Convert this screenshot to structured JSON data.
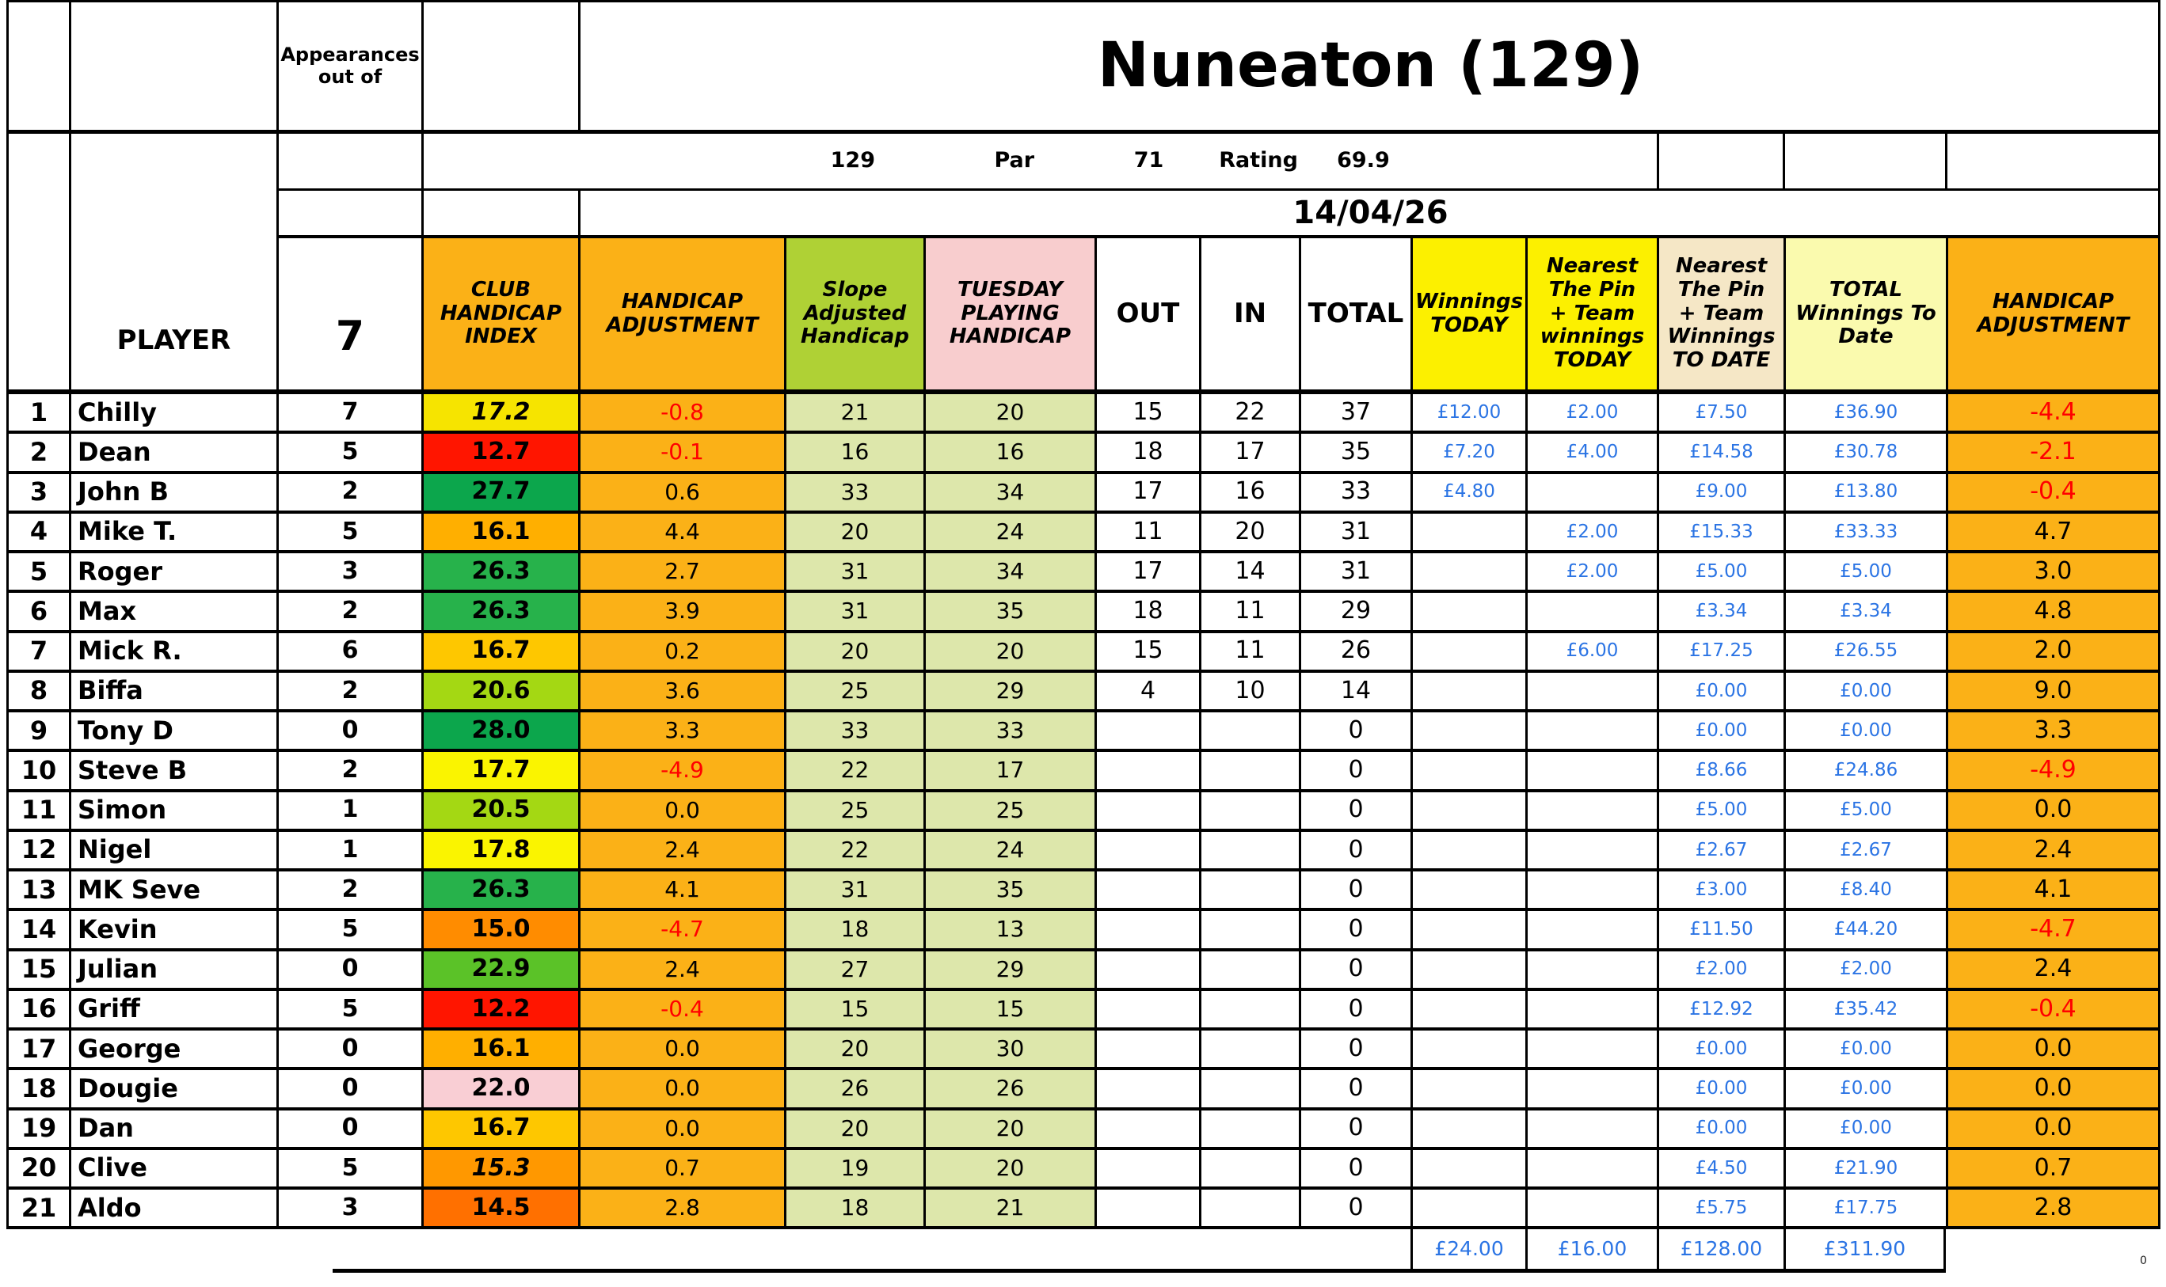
{
  "header": {
    "appearances_label": "Appearances out of",
    "title": "Nuneaton (129)",
    "slope_value": "129",
    "par_label": "Par",
    "par_value": "71",
    "rating_label": "Rating",
    "rating_value": "69.9",
    "date": "14/04/26",
    "player_label": "PLAYER",
    "appearances_total": "7",
    "columns": {
      "club_handicap_index": "CLUB HANDICAP INDEX",
      "handicap_adjustment": "HANDICAP ADJUSTMENT",
      "slope_adjusted_handicap": "Slope Adjusted Handicap",
      "tuesday_playing_handicap": "TUESDAY PLAYING HANDICAP",
      "out": "OUT",
      "in": "IN",
      "total": "TOTAL",
      "winnings_today": "Winnings TODAY",
      "nearest_pin_today": "Nearest The Pin + Team winnings TODAY",
      "nearest_pin_to_date": "Nearest The Pin + Team Winnings TO DATE",
      "total_winnings_to_date": "TOTAL Winnings To Date",
      "handicap_adjustment_right": "HANDICAP ADJUSTMENT"
    }
  },
  "colors": {
    "orange": "#FBB117",
    "slope_green": "#AFD135",
    "pink": "#F8CDCE",
    "yellow": "#FCF000",
    "cream": "#F5E7C6",
    "pale_yellow": "#FAFAAE",
    "pale_green": "#DDE7AB",
    "money_blue": "#2B74E4",
    "negative_red": "#FF0000"
  },
  "rows": [
    {
      "num": "1",
      "name": "Chilly",
      "apps": "7",
      "index": "17.2",
      "index_bg": "#F6E400",
      "index_italic": true,
      "adj": "-0.8",
      "slope": "21",
      "tue": "20",
      "out": "15",
      "in": "22",
      "total": "37",
      "win_today": "£12.00",
      "np_today": "£2.00",
      "np_to_date": "£7.50",
      "total_winnings": "£36.90",
      "handicap_adj": "-4.4"
    },
    {
      "num": "2",
      "name": "Dean",
      "apps": "5",
      "index": "12.7",
      "index_bg": "#FF1500",
      "index_italic": false,
      "adj": "-0.1",
      "slope": "16",
      "tue": "16",
      "out": "18",
      "in": "17",
      "total": "35",
      "win_today": "£7.20",
      "np_today": "£4.00",
      "np_to_date": "£14.58",
      "total_winnings": "£30.78",
      "handicap_adj": "-2.1"
    },
    {
      "num": "3",
      "name": "John B",
      "apps": "2",
      "index": "27.7",
      "index_bg": "#0CA64C",
      "index_italic": false,
      "adj": "0.6",
      "slope": "33",
      "tue": "34",
      "out": "17",
      "in": "16",
      "total": "33",
      "win_today": "£4.80",
      "np_today": "",
      "np_to_date": "£9.00",
      "total_winnings": "£13.80",
      "handicap_adj": "-0.4"
    },
    {
      "num": "4",
      "name": "Mike T.",
      "apps": "5",
      "index": "16.1",
      "index_bg": "#FFAF00",
      "index_italic": false,
      "adj": "4.4",
      "slope": "20",
      "tue": "24",
      "out": "11",
      "in": "20",
      "total": "31",
      "win_today": "",
      "np_today": "£2.00",
      "np_to_date": "£15.33",
      "total_winnings": "£33.33",
      "handicap_adj": "4.7"
    },
    {
      "num": "5",
      "name": "Roger",
      "apps": "3",
      "index": "26.3",
      "index_bg": "#27B24B",
      "index_italic": false,
      "adj": "2.7",
      "slope": "31",
      "tue": "34",
      "out": "17",
      "in": "14",
      "total": "31",
      "win_today": "",
      "np_today": "£2.00",
      "np_to_date": "£5.00",
      "total_winnings": "£5.00",
      "handicap_adj": "3.0"
    },
    {
      "num": "6",
      "name": "Max",
      "apps": "2",
      "index": "26.3",
      "index_bg": "#27B24B",
      "index_italic": false,
      "adj": "3.9",
      "slope": "31",
      "tue": "35",
      "out": "18",
      "in": "11",
      "total": "29",
      "win_today": "",
      "np_today": "",
      "np_to_date": "£3.34",
      "total_winnings": "£3.34",
      "handicap_adj": "4.8"
    },
    {
      "num": "7",
      "name": "Mick R.",
      "apps": "6",
      "index": "16.7",
      "index_bg": "#FEC700",
      "index_italic": false,
      "adj": "0.2",
      "slope": "20",
      "tue": "20",
      "out": "15",
      "in": "11",
      "total": "26",
      "win_today": "",
      "np_today": "£6.00",
      "np_to_date": "£17.25",
      "total_winnings": "£26.55",
      "handicap_adj": "2.0"
    },
    {
      "num": "8",
      "name": "Biffa",
      "apps": "2",
      "index": "20.6",
      "index_bg": "#A4D813",
      "index_italic": false,
      "adj": "3.6",
      "slope": "25",
      "tue": "29",
      "out": "4",
      "in": "10",
      "total": "14",
      "win_today": "",
      "np_today": "",
      "np_to_date": "£0.00",
      "total_winnings": "£0.00",
      "handicap_adj": "9.0"
    },
    {
      "num": "9",
      "name": "Tony D",
      "apps": "0",
      "index": "28.0",
      "index_bg": "#0CA64C",
      "index_italic": false,
      "adj": "3.3",
      "slope": "33",
      "tue": "33",
      "out": "",
      "in": "",
      "total": "0",
      "win_today": "",
      "np_today": "",
      "np_to_date": "£0.00",
      "total_winnings": "£0.00",
      "handicap_adj": "3.3"
    },
    {
      "num": "10",
      "name": "Steve B",
      "apps": "2",
      "index": "17.7",
      "index_bg": "#FAF400",
      "index_italic": false,
      "adj": "-4.9",
      "slope": "22",
      "tue": "17",
      "out": "",
      "in": "",
      "total": "0",
      "win_today": "",
      "np_today": "",
      "np_to_date": "£8.66",
      "total_winnings": "£24.86",
      "handicap_adj": "-4.9"
    },
    {
      "num": "11",
      "name": "Simon",
      "apps": "1",
      "index": "20.5",
      "index_bg": "#A4D813",
      "index_italic": false,
      "adj": "0.0",
      "slope": "25",
      "tue": "25",
      "out": "",
      "in": "",
      "total": "0",
      "win_today": "",
      "np_today": "",
      "np_to_date": "£5.00",
      "total_winnings": "£5.00",
      "handicap_adj": "0.0"
    },
    {
      "num": "12",
      "name": "Nigel",
      "apps": "1",
      "index": "17.8",
      "index_bg": "#FAF400",
      "index_italic": false,
      "adj": "2.4",
      "slope": "22",
      "tue": "24",
      "out": "",
      "in": "",
      "total": "0",
      "win_today": "",
      "np_today": "",
      "np_to_date": "£2.67",
      "total_winnings": "£2.67",
      "handicap_adj": "2.4"
    },
    {
      "num": "13",
      "name": "MK Seve",
      "apps": "2",
      "index": "26.3",
      "index_bg": "#27B24B",
      "index_italic": false,
      "adj": "4.1",
      "slope": "31",
      "tue": "35",
      "out": "",
      "in": "",
      "total": "0",
      "win_today": "",
      "np_today": "",
      "np_to_date": "£3.00",
      "total_winnings": "£8.40",
      "handicap_adj": "4.1"
    },
    {
      "num": "14",
      "name": "Kevin",
      "apps": "5",
      "index": "15.0",
      "index_bg": "#FF8C00",
      "index_italic": false,
      "adj": "-4.7",
      "slope": "18",
      "tue": "13",
      "out": "",
      "in": "",
      "total": "0",
      "win_today": "",
      "np_today": "",
      "np_to_date": "£11.50",
      "total_winnings": "£44.20",
      "handicap_adj": "-4.7"
    },
    {
      "num": "15",
      "name": "Julian",
      "apps": "0",
      "index": "22.9",
      "index_bg": "#5BC228",
      "index_italic": false,
      "adj": "2.4",
      "slope": "27",
      "tue": "29",
      "out": "",
      "in": "",
      "total": "0",
      "win_today": "",
      "np_today": "",
      "np_to_date": "£2.00",
      "total_winnings": "£2.00",
      "handicap_adj": "2.4"
    },
    {
      "num": "16",
      "name": "Griff",
      "apps": "5",
      "index": "12.2",
      "index_bg": "#FF1500",
      "index_italic": false,
      "adj": "-0.4",
      "slope": "15",
      "tue": "15",
      "out": "",
      "in": "",
      "total": "0",
      "win_today": "",
      "np_today": "",
      "np_to_date": "£12.92",
      "total_winnings": "£35.42",
      "handicap_adj": "-0.4"
    },
    {
      "num": "17",
      "name": "George",
      "apps": "0",
      "index": "16.1",
      "index_bg": "#FFAF00",
      "index_italic": false,
      "adj": "0.0",
      "slope": "20",
      "tue": "30",
      "out": "",
      "in": "",
      "total": "0",
      "win_today": "",
      "np_today": "",
      "np_to_date": "£0.00",
      "total_winnings": "£0.00",
      "handicap_adj": "0.0"
    },
    {
      "num": "18",
      "name": "Dougie",
      "apps": "0",
      "index": "22.0",
      "index_bg": "#F9CED4",
      "index_italic": false,
      "adj": "0.0",
      "slope": "26",
      "tue": "26",
      "out": "",
      "in": "",
      "total": "0",
      "win_today": "",
      "np_today": "",
      "np_to_date": "£0.00",
      "total_winnings": "£0.00",
      "handicap_adj": "0.0"
    },
    {
      "num": "19",
      "name": "Dan",
      "apps": "0",
      "index": "16.7",
      "index_bg": "#FEC700",
      "index_italic": false,
      "adj": "0.0",
      "slope": "20",
      "tue": "20",
      "out": "",
      "in": "",
      "total": "0",
      "win_today": "",
      "np_today": "",
      "np_to_date": "£0.00",
      "total_winnings": "£0.00",
      "handicap_adj": "0.0"
    },
    {
      "num": "20",
      "name": "Clive",
      "apps": "5",
      "index": "15.3",
      "index_bg": "#FF9800",
      "index_italic": true,
      "adj": "0.7",
      "slope": "19",
      "tue": "20",
      "out": "",
      "in": "",
      "total": "0",
      "win_today": "",
      "np_today": "",
      "np_to_date": "£4.50",
      "total_winnings": "£21.90",
      "handicap_adj": "0.7"
    },
    {
      "num": "21",
      "name": "Aldo",
      "apps": "3",
      "index": "14.5",
      "index_bg": "#FF7000",
      "index_italic": false,
      "adj": "2.8",
      "slope": "18",
      "tue": "21",
      "out": "",
      "in": "",
      "total": "0",
      "win_today": "",
      "np_today": "",
      "np_to_date": "£5.75",
      "total_winnings": "£17.75",
      "handicap_adj": "2.8"
    }
  ],
  "totals": {
    "winnings_today": "£24.00",
    "np_today": "£16.00",
    "np_to_date": "£128.00",
    "total_winnings": "£311.90"
  },
  "footer_zero": "0"
}
